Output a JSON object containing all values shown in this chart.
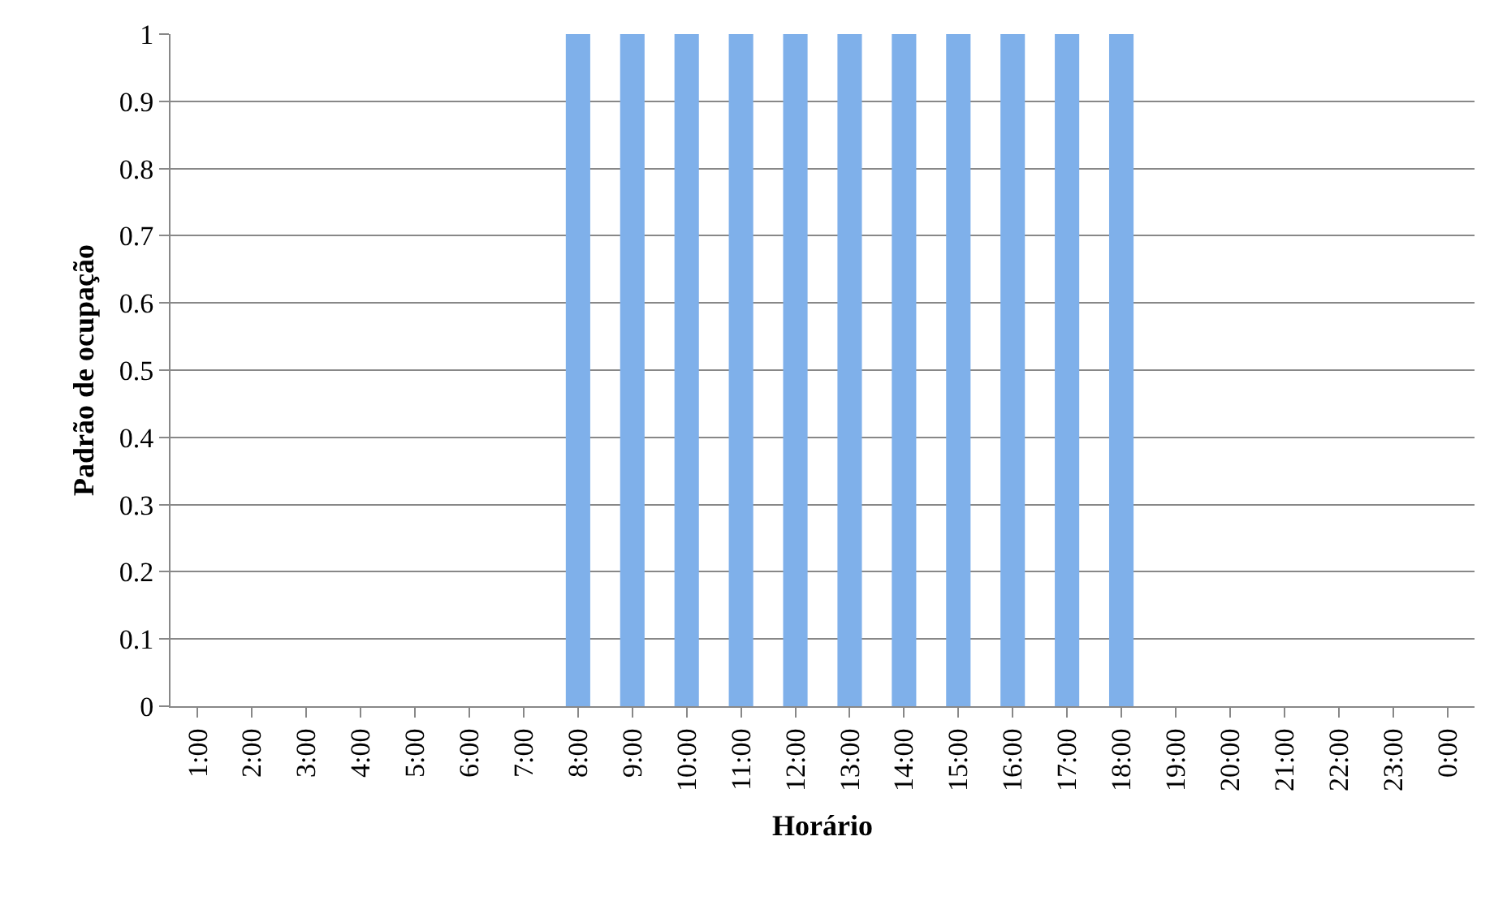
{
  "chart_data": {
    "type": "bar",
    "xlabel": "Horário",
    "ylabel": "Padrão de ocupação",
    "categories": [
      "1:00",
      "2:00",
      "3:00",
      "4:00",
      "5:00",
      "6:00",
      "7:00",
      "8:00",
      "9:00",
      "10:00",
      "11:00",
      "12:00",
      "13:00",
      "14:00",
      "15:00",
      "16:00",
      "17:00",
      "18:00",
      "19:00",
      "20:00",
      "21:00",
      "22:00",
      "23:00",
      "0:00"
    ],
    "values": [
      0,
      0,
      0,
      0,
      0,
      0,
      0,
      1,
      1,
      1,
      1,
      1,
      1,
      1,
      1,
      1,
      1,
      1,
      0,
      0,
      0,
      0,
      0,
      0
    ],
    "color": "#7fb0ea",
    "ylim": [
      0,
      1
    ],
    "yticks": [
      0,
      0.1,
      0.2,
      0.3,
      0.4,
      0.5,
      0.6,
      0.7,
      0.8,
      0.9,
      1
    ],
    "grid": "y"
  }
}
